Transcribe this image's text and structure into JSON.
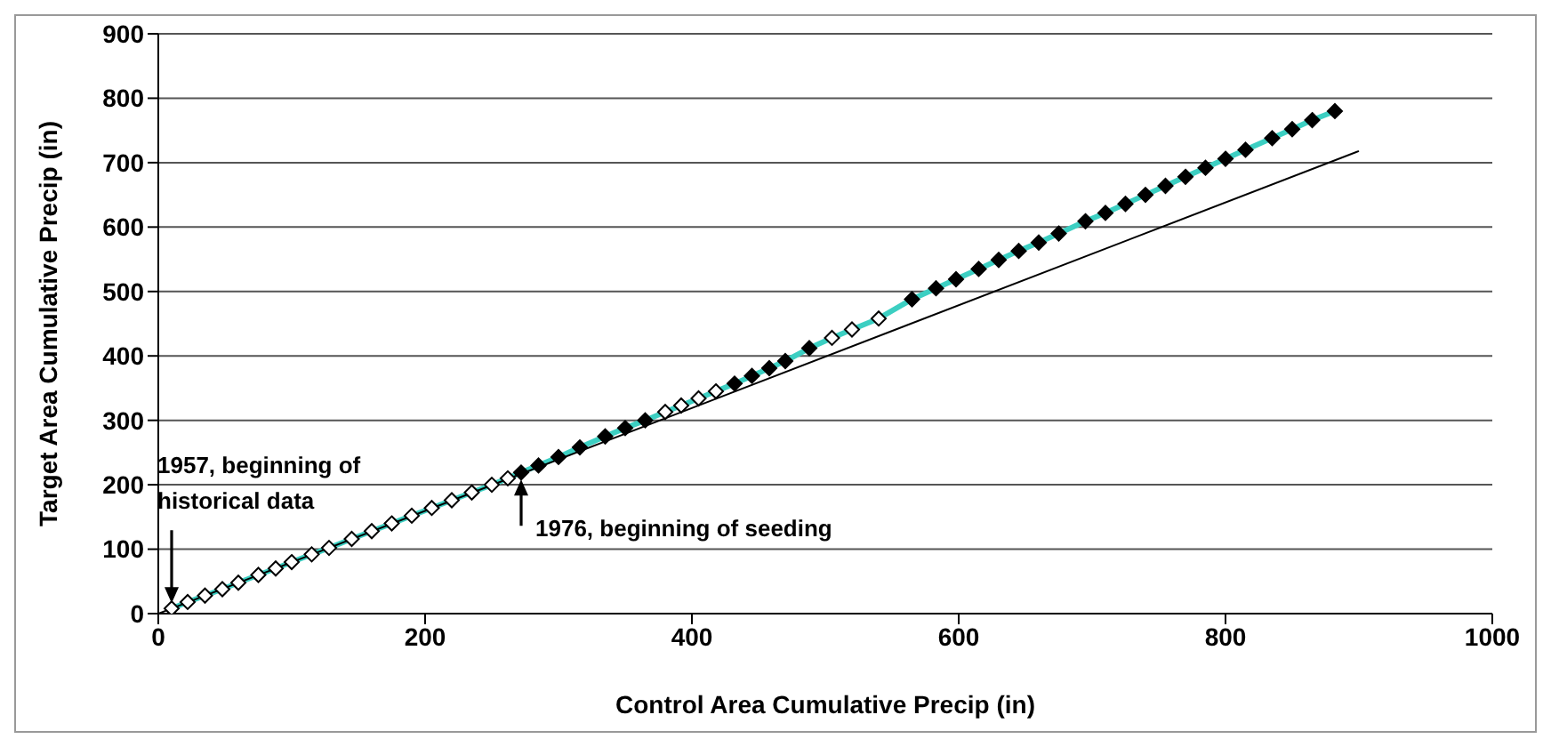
{
  "chart_data": {
    "type": "scatter",
    "xlabel": "Control Area Cumulative Precip (in)",
    "ylabel": "Target Area Cumulative Precip (in)",
    "xlim": [
      0,
      1000
    ],
    "ylim": [
      0,
      900
    ],
    "xticks": [
      0,
      200,
      400,
      600,
      800,
      1000
    ],
    "yticks": [
      0,
      100,
      200,
      300,
      400,
      500,
      600,
      700,
      800,
      900
    ],
    "grid": "y",
    "series": [
      {
        "type": "line",
        "color": "#3ccfc2",
        "marker": "none",
        "line_style": "solid",
        "x": [
          10,
          22,
          35,
          48,
          60,
          75,
          88,
          100,
          115,
          128,
          145,
          160,
          175,
          190,
          205,
          220,
          235,
          250,
          262,
          272,
          285,
          300,
          316,
          335,
          350,
          365,
          380,
          392,
          405,
          418,
          432,
          445,
          458,
          470,
          488,
          505,
          520,
          540,
          565,
          583,
          598,
          615,
          630,
          645,
          660,
          675,
          695,
          710,
          725,
          740,
          755,
          770,
          785,
          800,
          815,
          835,
          850,
          865,
          882
        ],
        "values": [
          8,
          18,
          28,
          38,
          48,
          60,
          70,
          80,
          92,
          102,
          116,
          128,
          140,
          152,
          164,
          176,
          188,
          200,
          210,
          219,
          230,
          243,
          258,
          275,
          288,
          300,
          313,
          323,
          334,
          345,
          357,
          369,
          381,
          392,
          412,
          428,
          441,
          458,
          488,
          505,
          519,
          535,
          549,
          563,
          576,
          590,
          609,
          622,
          636,
          650,
          664,
          678,
          692,
          706,
          720,
          738,
          752,
          766,
          780
        ]
      },
      {
        "type": "line",
        "color": "#000000",
        "marker": "none",
        "line_style": "solid",
        "x": [
          0,
          900
        ],
        "values": [
          0,
          718
        ]
      },
      {
        "color": "#ffffff",
        "marker": "diamond",
        "x": [
          10,
          22,
          35,
          48,
          60,
          75,
          88,
          100,
          115,
          128,
          145,
          160,
          175,
          190,
          205,
          220,
          235,
          250,
          262,
          380,
          392,
          405,
          418,
          505,
          520,
          540
        ],
        "values": [
          8,
          18,
          28,
          38,
          48,
          60,
          70,
          80,
          92,
          102,
          116,
          128,
          140,
          152,
          164,
          176,
          188,
          200,
          210,
          313,
          323,
          334,
          345,
          428,
          441,
          458
        ]
      },
      {
        "color": "#000000",
        "marker": "diamond",
        "x": [
          272,
          285,
          300,
          316,
          335,
          350,
          365,
          432,
          445,
          458,
          470,
          488,
          565,
          583,
          598,
          615,
          630,
          645,
          660,
          675,
          695,
          710,
          725,
          740,
          755,
          770,
          785,
          800,
          815,
          835,
          850,
          865,
          882
        ],
        "values": [
          219,
          230,
          243,
          258,
          275,
          288,
          300,
          357,
          369,
          381,
          392,
          412,
          488,
          505,
          519,
          535,
          549,
          563,
          576,
          590,
          609,
          622,
          636,
          650,
          664,
          678,
          692,
          706,
          720,
          738,
          752,
          766,
          780
        ]
      }
    ],
    "annotations": [
      "1957, beginning of historical data",
      {
        "text": "1976, beginning of seeding",
        "x": 272,
        "y": 219
      }
    ]
  }
}
